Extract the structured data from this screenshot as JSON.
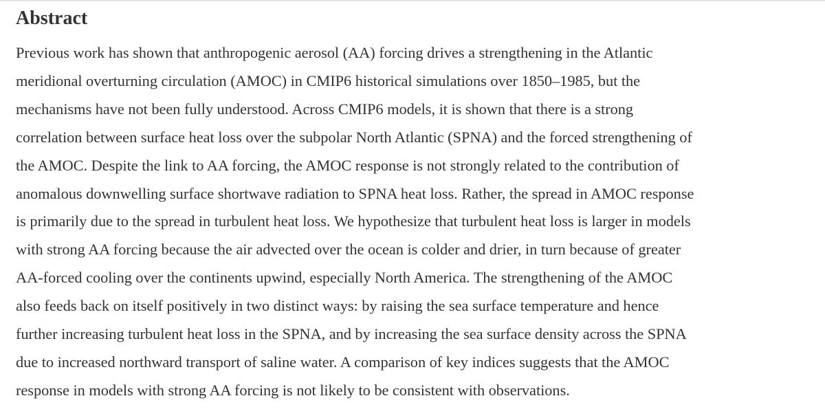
{
  "abstract": {
    "heading": "Abstract",
    "lines": [
      "Previous work has shown that anthropogenic aerosol (AA) forcing drives a strengthening in the Atlantic",
      "meridional overturning circulation (AMOC) in CMIP6 historical simulations over 1850–1985, but the",
      "mechanisms have not been fully understood. Across CMIP6 models, it is shown that there is a strong",
      "correlation between surface heat loss over the subpolar North Atlantic (SPNA) and the forced strengthening of",
      "the AMOC. Despite the link to AA forcing, the AMOC response is not strongly related to the contribution of",
      "anomalous downwelling surface shortwave radiation to SPNA heat loss. Rather, the spread in AMOC response",
      "is primarily due to the spread in turbulent heat loss. We hypothesize that turbulent heat loss is larger in models",
      "with strong AA forcing because the air advected over the ocean is colder and drier, in turn because of greater",
      "AA-forced cooling over the continents upwind, especially North America. The strengthening of the AMOC",
      "also feeds back on itself positively in two distinct ways: by raising the sea surface temperature and hence",
      "further increasing turbulent heat loss in the SPNA, and by increasing the sea surface density across the SPNA",
      "due to increased northward transport of saline water. A comparison of key indices suggests that the AMOC",
      "response in models with strong AA forcing is not likely to be consistent with observations."
    ]
  },
  "colors": {
    "text": "#333333",
    "background": "#ffffff",
    "rule": "#e4e4e4"
  }
}
